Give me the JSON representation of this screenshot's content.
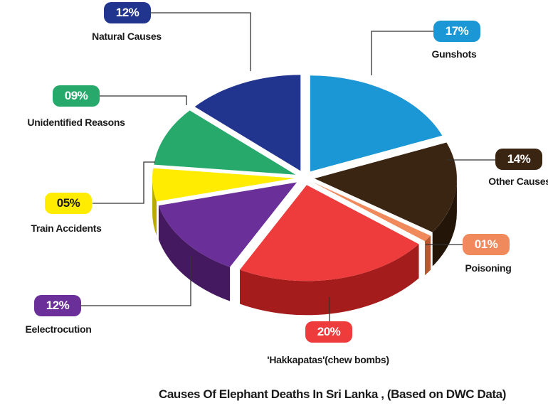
{
  "chart_data": {
    "type": "pie",
    "title": "Causes Of Elephant Deaths In Sri Lanka , (Based on DWC Data)",
    "slices": [
      {
        "label": "Gunshots",
        "value_label": "17%",
        "value": 17,
        "color": "#1b97d5",
        "side": "#0e5f8c"
      },
      {
        "label": "Other Causes",
        "value_label": "14%",
        "value": 14,
        "color": "#3a2412",
        "side": "#241509"
      },
      {
        "label": "Poisoning",
        "value_label": "01%",
        "value": 1,
        "color": "#f08a5d",
        "side": "#b55a30"
      },
      {
        "label": "'Hakkapatas'(chew bombs)",
        "value_label": "20%",
        "value": 20,
        "color": "#ee3b3b",
        "side": "#a51c1c"
      },
      {
        "label": "Eelectrocution",
        "value_label": "12%",
        "value": 12,
        "color": "#6a2f98",
        "side": "#45195f"
      },
      {
        "label": "Train Accidents",
        "value_label": "05%",
        "value": 5,
        "color": "#ffec00",
        "side": "#b9a900"
      },
      {
        "label": "Unidentified Reasons",
        "value_label": "09%",
        "value": 9,
        "color": "#26a96b",
        "side": "#14673f"
      },
      {
        "label": "Natural Causes",
        "value_label": "12%",
        "value": 12,
        "color": "#21358f",
        "side": "#111c55"
      }
    ],
    "legend": "none"
  }
}
